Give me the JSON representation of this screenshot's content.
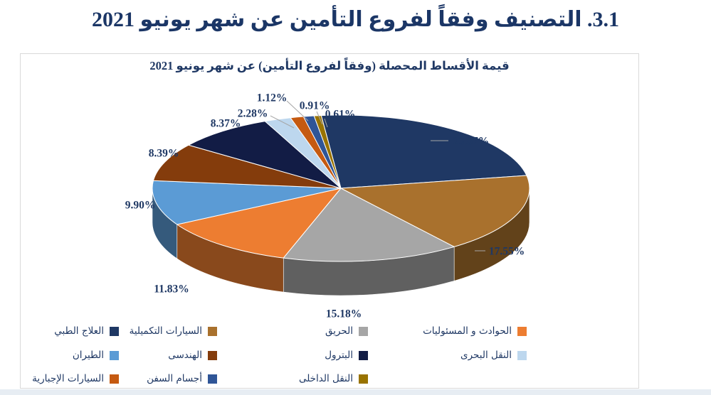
{
  "page": {
    "section_title": "3.1. التصنيف وفقاً لفروع التأمين عن شهر يونيو 2021"
  },
  "chart_data": {
    "type": "pie",
    "style": "3d-pie",
    "title": "قيمة الأقساط المحصلة (وفقاً لفروع التأمين) عن شهر يونيو 2021",
    "value_unit": "%",
    "legend_position": "bottom",
    "series": [
      {
        "label": "العلاج الطبي",
        "value": 23.87,
        "color": "#1F3864"
      },
      {
        "label": "السيارات التكميلية",
        "value": 17.55,
        "color": "#A9712D"
      },
      {
        "label": "الحريق",
        "value": 15.18,
        "color": "#A6A6A6"
      },
      {
        "label": "الحوادث و المسئوليات",
        "value": 11.83,
        "color": "#ED7D31"
      },
      {
        "label": "الطيران",
        "value": 9.9,
        "color": "#5B9BD5"
      },
      {
        "label": "الهندسى",
        "value": 8.39,
        "color": "#843C0C"
      },
      {
        "label": "البترول",
        "value": 8.37,
        "color": "#121C45"
      },
      {
        "label": "النقل البحرى",
        "value": 2.28,
        "color": "#BDD7EE"
      },
      {
        "label": "السيارات الإجبارية",
        "value": 1.12,
        "color": "#C55A11"
      },
      {
        "label": "أجسام السفن",
        "value": 0.91,
        "color": "#2F5597"
      },
      {
        "label": "النقل الداخلى",
        "value": 0.61,
        "color": "#997300"
      }
    ]
  },
  "colors": {
    "title_text": "#1F3864",
    "panel_border": "#D9D9D9",
    "leader_line": "#A6A6A6",
    "bottom_strip": "#E7EDF3"
  }
}
